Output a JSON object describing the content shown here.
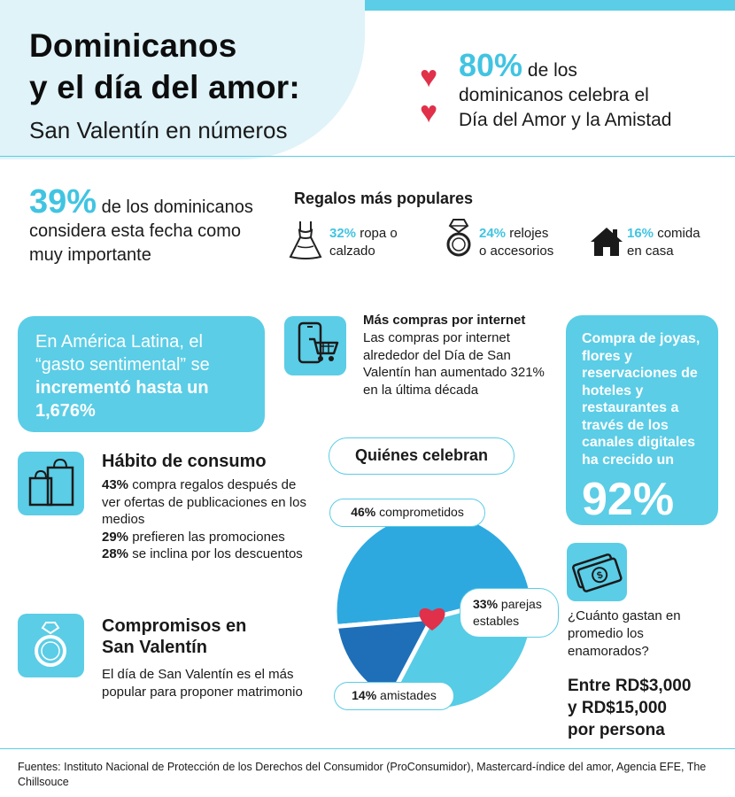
{
  "header": {
    "title_line1": "Dominicanos",
    "title_line2": "y el día del amor:",
    "subtitle": "San Valentín en números"
  },
  "celebrate": {
    "pct": "80%",
    "line1": " de los",
    "line2": "dominicanos celebra el",
    "line3": "Día del Amor y la Amistad"
  },
  "important": {
    "pct": "39%",
    "line1": " de los",
    "rest": "dominicanos considera esta fecha como muy importante"
  },
  "gifts": {
    "title": "Regalos más populares",
    "items": [
      {
        "pct": "32%",
        "text_a": " ropa o",
        "text_b": "calzado",
        "icon": "dress-icon"
      },
      {
        "pct": "24%",
        "text_a": " relojes",
        "text_b": "o accesorios",
        "icon": "ring-icon"
      },
      {
        "pct": "16%",
        "text_a": " comida",
        "text_b": "en casa",
        "icon": "house-icon"
      }
    ]
  },
  "latam": {
    "line1": "En América Latina, el",
    "line2": "“gasto sentimental” se",
    "line3": "incrementó hasta un",
    "line4": "1,676%"
  },
  "online": {
    "title": "Más compras por internet",
    "text": "Las compras por internet alrededor del Día de San Valentín han aumentado 321% en la última década"
  },
  "digital": {
    "text": "Compra de joyas, flores y reservaciones de hoteles y restaurantes a través de los canales digitales ha crecido un",
    "pct": "92%"
  },
  "habit": {
    "title": "Hábito de consumo",
    "items": [
      {
        "pct": "43%",
        "text": " compra regalos después de ver ofertas de publicaciones en los medios"
      },
      {
        "pct": "29%",
        "text": " prefieren las promociones"
      },
      {
        "pct": "28%",
        "text": " se inclina por los descuentos"
      }
    ]
  },
  "engagement": {
    "title_line1": "Compromisos en",
    "title_line2": "San Valentín",
    "text": "El día de San Valentín es el más popular para proponer matrimonio"
  },
  "spend": {
    "question": "¿Cuánto gastan en promedio los enamorados?",
    "answer_line1": "Entre RD$3,000",
    "answer_line2": "y RD$15,000",
    "answer_line3": "por persona"
  },
  "sources": "Fuentes: Instituto Nacional de Protección de los Derechos del Consumidor (ProConsumidor), Mastercard-índice del amor, Agencia EFE, The Chillsouce",
  "chart_data": {
    "type": "pie",
    "title": "Quiénes celebran",
    "categories": [
      "comprometidos",
      "parejas estables",
      "amistades"
    ],
    "values": [
      46,
      33,
      14
    ],
    "labels": [
      "46%",
      "33%",
      "14%"
    ],
    "colors": [
      "#2da9e0",
      "#56cce6",
      "#1e6fb8"
    ]
  },
  "colors": {
    "accent": "#5bcde6",
    "accent_text": "#41c4e2",
    "heart": "#e0304a"
  }
}
